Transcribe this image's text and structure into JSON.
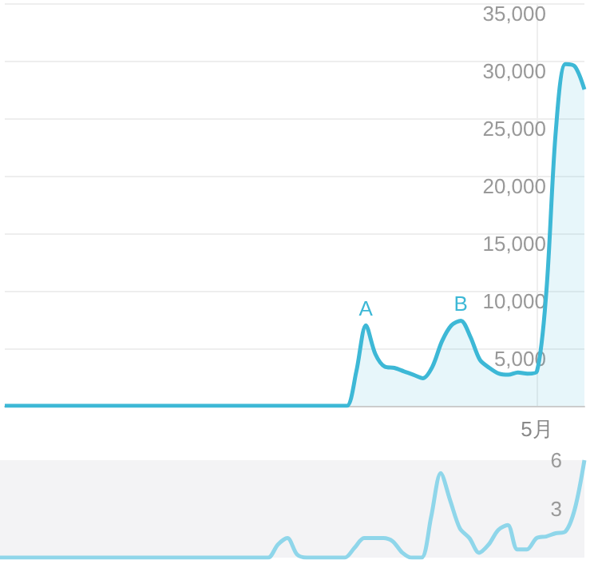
{
  "chart_data": [
    {
      "type": "area",
      "categories": [
        null,
        null,
        null,
        null,
        null,
        null,
        null,
        null,
        null,
        null,
        null,
        null,
        null,
        null,
        null,
        null,
        null,
        null,
        null,
        null,
        null,
        null,
        null,
        null,
        null,
        null,
        null,
        null,
        null,
        null,
        null,
        null,
        null,
        null,
        null,
        null,
        null,
        null,
        null,
        null,
        null,
        null,
        null,
        null,
        null,
        null,
        null,
        null,
        null,
        null,
        null,
        null,
        null,
        null,
        null,
        null,
        "5月",
        null,
        null,
        null,
        null,
        null
      ],
      "series": [
        {
          "color": "#3db8d6",
          "values": [
            0,
            0,
            0,
            0,
            0,
            0,
            0,
            0,
            0,
            0,
            0,
            0,
            0,
            0,
            0,
            0,
            0,
            0,
            0,
            0,
            0,
            0,
            0,
            0,
            0,
            0,
            0,
            0,
            0,
            0,
            0,
            0,
            0,
            0,
            0,
            0,
            0,
            3000,
            7000,
            4500,
            3400,
            3300,
            3000,
            2700,
            2400,
            3400,
            5600,
            7000,
            7400,
            6000,
            4000,
            3300,
            2800,
            2700,
            2900,
            2800,
            3000,
            10000,
            24000,
            29700,
            29500,
            27500
          ],
          "value_labels": [
            null,
            null,
            null,
            null,
            null,
            null,
            null,
            null,
            null,
            null,
            null,
            null,
            null,
            null,
            null,
            null,
            null,
            null,
            null,
            null,
            null,
            null,
            null,
            null,
            null,
            null,
            null,
            null,
            null,
            null,
            null,
            null,
            null,
            null,
            null,
            null,
            null,
            null,
            "A",
            null,
            null,
            null,
            null,
            null,
            null,
            null,
            null,
            null,
            "B",
            null,
            null,
            null,
            null,
            null,
            null,
            null,
            null,
            null,
            null,
            null,
            null,
            null
          ]
        }
      ],
      "ylim": [
        0,
        35000
      ],
      "yticks": [
        {
          "value": 5000,
          "label": "5,000"
        },
        {
          "value": 10000,
          "label": "10,000"
        },
        {
          "value": 15000,
          "label": "15,000"
        },
        {
          "value": 20000,
          "label": "20,000"
        },
        {
          "value": 25000,
          "label": "25,000"
        },
        {
          "value": 30000,
          "label": "30,000"
        },
        {
          "value": 35000,
          "label": "35,000"
        }
      ],
      "grid": "y",
      "marker": "none"
    },
    {
      "type": "line",
      "categories": [
        null,
        null,
        null,
        null,
        null,
        null,
        null,
        null,
        null,
        null,
        null,
        null,
        null,
        null,
        null,
        null,
        null,
        null,
        null,
        null,
        null,
        null,
        null,
        null,
        null,
        null,
        null,
        null,
        null,
        null,
        null,
        null,
        null,
        null,
        null,
        null,
        null,
        null,
        null,
        null,
        null,
        null,
        null,
        null,
        null,
        null,
        null,
        null,
        null,
        null,
        null,
        null,
        null,
        null,
        null,
        null,
        null,
        null,
        null,
        null,
        null,
        null
      ],
      "series": [
        {
          "color": "#8fd6ea",
          "values": [
            0,
            0,
            0,
            0,
            0,
            0,
            0,
            0,
            0,
            0,
            0,
            0,
            0,
            0,
            0,
            0,
            0,
            0,
            0,
            0,
            0,
            0,
            0,
            0,
            0,
            0,
            0,
            0,
            0,
            0.8,
            1.2,
            0.2,
            0,
            0,
            0,
            0,
            0,
            0.6,
            1.2,
            1.2,
            1.2,
            1.0,
            0.3,
            0,
            0,
            2.5,
            5.2,
            3.5,
            1.8,
            1.2,
            0.3,
            0.8,
            1.7,
            2.0,
            0.5,
            0.5,
            1.2,
            1.3,
            1.5,
            1.6,
            3.0,
            6.0
          ]
        }
      ],
      "ylim": [
        0,
        6
      ],
      "yticks": [
        3,
        6
      ],
      "tick_labels": "y",
      "grid": false,
      "marker": "none"
    }
  ]
}
